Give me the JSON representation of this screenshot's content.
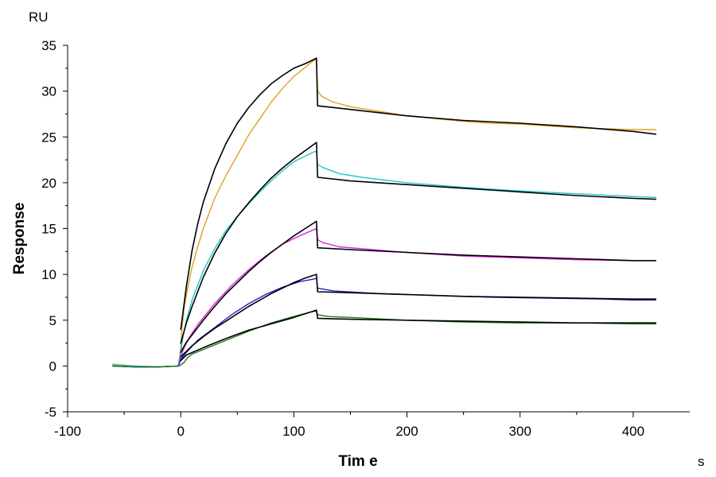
{
  "chart_data": {
    "type": "line",
    "title": "",
    "xlabel": "Tim e",
    "ylabel": "Response",
    "x_unit": "s",
    "y_unit": "RU",
    "xlim": [
      -100,
      450
    ],
    "ylim": [
      -5,
      35
    ],
    "x_ticks": [
      -100,
      0,
      100,
      200,
      300,
      400
    ],
    "y_ticks": [
      -5,
      0,
      5,
      10,
      15,
      20,
      25,
      30,
      35
    ],
    "grid": false,
    "legend": "none",
    "series": [
      {
        "color": "#E0A020",
        "points": [
          [
            -60,
            0.2
          ],
          [
            -40,
            0.0
          ],
          [
            -20,
            -0.1
          ],
          [
            -2,
            0.0
          ],
          [
            0,
            2.0
          ],
          [
            1,
            4.0
          ],
          [
            3,
            6.3
          ],
          [
            6,
            8.4
          ],
          [
            10,
            10.8
          ],
          [
            15,
            13.0
          ],
          [
            20,
            15.0
          ],
          [
            30,
            18.3
          ],
          [
            40,
            20.8
          ],
          [
            50,
            23.0
          ],
          [
            60,
            25.2
          ],
          [
            70,
            27.0
          ],
          [
            80,
            28.8
          ],
          [
            90,
            30.3
          ],
          [
            100,
            31.6
          ],
          [
            110,
            32.6
          ],
          [
            117,
            33.3
          ],
          [
            120,
            33.4
          ],
          [
            121,
            30.0
          ],
          [
            125,
            29.4
          ],
          [
            135,
            28.8
          ],
          [
            150,
            28.3
          ],
          [
            175,
            27.8
          ],
          [
            200,
            27.3
          ],
          [
            225,
            27.0
          ],
          [
            250,
            26.7
          ],
          [
            275,
            26.5
          ],
          [
            300,
            26.4
          ],
          [
            325,
            26.2
          ],
          [
            350,
            26.0
          ],
          [
            375,
            25.9
          ],
          [
            400,
            25.8
          ],
          [
            420,
            25.8
          ]
        ]
      },
      {
        "color": "#000000",
        "points": [
          [
            0,
            4.0
          ],
          [
            5,
            8.7
          ],
          [
            10,
            12.6
          ],
          [
            15,
            15.5
          ],
          [
            20,
            17.9
          ],
          [
            30,
            21.5
          ],
          [
            40,
            24.3
          ],
          [
            50,
            26.5
          ],
          [
            60,
            28.2
          ],
          [
            70,
            29.6
          ],
          [
            80,
            30.8
          ],
          [
            90,
            31.7
          ],
          [
            100,
            32.5
          ],
          [
            110,
            33.0
          ],
          [
            120,
            33.6
          ],
          [
            121,
            28.4
          ],
          [
            150,
            28.0
          ],
          [
            200,
            27.3
          ],
          [
            250,
            26.8
          ],
          [
            300,
            26.5
          ],
          [
            350,
            26.1
          ],
          [
            400,
            25.6
          ],
          [
            420,
            25.3
          ]
        ]
      },
      {
        "color": "#20C8C8",
        "points": [
          [
            -60,
            0.1
          ],
          [
            -40,
            0.0
          ],
          [
            -20,
            -0.1
          ],
          [
            -2,
            0.0
          ],
          [
            0,
            1.5
          ],
          [
            2,
            3.2
          ],
          [
            5,
            5.0
          ],
          [
            10,
            7.2
          ],
          [
            20,
            10.4
          ],
          [
            30,
            12.8
          ],
          [
            40,
            14.8
          ],
          [
            50,
            16.3
          ],
          [
            60,
            17.7
          ],
          [
            70,
            19.0
          ],
          [
            80,
            20.2
          ],
          [
            90,
            21.3
          ],
          [
            100,
            22.3
          ],
          [
            110,
            22.9
          ],
          [
            118,
            23.4
          ],
          [
            120,
            23.4
          ],
          [
            121,
            22.0
          ],
          [
            125,
            21.7
          ],
          [
            140,
            21.0
          ],
          [
            160,
            20.6
          ],
          [
            200,
            20.0
          ],
          [
            250,
            19.5
          ],
          [
            300,
            19.1
          ],
          [
            350,
            18.8
          ],
          [
            400,
            18.5
          ],
          [
            420,
            18.4
          ]
        ]
      },
      {
        "color": "#000000",
        "points": [
          [
            0,
            2.5
          ],
          [
            5,
            4.7
          ],
          [
            10,
            6.5
          ],
          [
            20,
            9.7
          ],
          [
            30,
            12.3
          ],
          [
            40,
            14.5
          ],
          [
            50,
            16.3
          ],
          [
            60,
            17.8
          ],
          [
            70,
            19.2
          ],
          [
            80,
            20.5
          ],
          [
            90,
            21.6
          ],
          [
            100,
            22.6
          ],
          [
            110,
            23.5
          ],
          [
            120,
            24.4
          ],
          [
            121,
            20.6
          ],
          [
            150,
            20.2
          ],
          [
            200,
            19.8
          ],
          [
            250,
            19.4
          ],
          [
            300,
            19.0
          ],
          [
            350,
            18.6
          ],
          [
            400,
            18.3
          ],
          [
            420,
            18.2
          ]
        ]
      },
      {
        "color": "#E020E0",
        "points": [
          [
            -60,
            0.0
          ],
          [
            -40,
            -0.1
          ],
          [
            -20,
            -0.1
          ],
          [
            -2,
            0.0
          ],
          [
            0,
            1.0
          ],
          [
            3,
            2.0
          ],
          [
            8,
            3.2
          ],
          [
            15,
            4.5
          ],
          [
            30,
            6.8
          ],
          [
            45,
            8.8
          ],
          [
            60,
            10.5
          ],
          [
            75,
            12.0
          ],
          [
            90,
            13.3
          ],
          [
            105,
            14.2
          ],
          [
            118,
            14.9
          ],
          [
            120,
            15.0
          ],
          [
            121,
            13.8
          ],
          [
            125,
            13.5
          ],
          [
            140,
            13.0
          ],
          [
            200,
            12.4
          ],
          [
            250,
            12.0
          ],
          [
            300,
            11.8
          ],
          [
            350,
            11.6
          ],
          [
            400,
            11.5
          ],
          [
            420,
            11.5
          ]
        ]
      },
      {
        "color": "#000000",
        "points": [
          [
            0,
            1.5
          ],
          [
            5,
            2.6
          ],
          [
            10,
            3.4
          ],
          [
            20,
            5.0
          ],
          [
            30,
            6.5
          ],
          [
            40,
            7.9
          ],
          [
            50,
            9.1
          ],
          [
            60,
            10.3
          ],
          [
            70,
            11.4
          ],
          [
            80,
            12.4
          ],
          [
            90,
            13.3
          ],
          [
            100,
            14.2
          ],
          [
            110,
            15.0
          ],
          [
            120,
            15.8
          ],
          [
            121,
            12.9
          ],
          [
            150,
            12.7
          ],
          [
            200,
            12.4
          ],
          [
            250,
            12.1
          ],
          [
            300,
            11.9
          ],
          [
            350,
            11.7
          ],
          [
            400,
            11.5
          ],
          [
            420,
            11.5
          ]
        ]
      },
      {
        "color": "#2020D0",
        "points": [
          [
            -60,
            0.0
          ],
          [
            -40,
            -0.1
          ],
          [
            -20,
            -0.1
          ],
          [
            -2,
            0.0
          ],
          [
            0,
            0.7
          ],
          [
            5,
            1.5
          ],
          [
            15,
            2.8
          ],
          [
            30,
            4.2
          ],
          [
            45,
            5.6
          ],
          [
            60,
            6.8
          ],
          [
            75,
            7.8
          ],
          [
            90,
            8.6
          ],
          [
            105,
            9.2
          ],
          [
            118,
            9.5
          ],
          [
            120,
            9.6
          ],
          [
            121,
            8.5
          ],
          [
            135,
            8.2
          ],
          [
            175,
            7.9
          ],
          [
            225,
            7.7
          ],
          [
            275,
            7.5
          ],
          [
            325,
            7.4
          ],
          [
            375,
            7.3
          ],
          [
            400,
            7.2
          ],
          [
            420,
            7.2
          ]
        ]
      },
      {
        "color": "#000000",
        "points": [
          [
            0,
            1.0
          ],
          [
            5,
            1.6
          ],
          [
            10,
            2.2
          ],
          [
            20,
            3.2
          ],
          [
            30,
            4.1
          ],
          [
            40,
            4.9
          ],
          [
            50,
            5.7
          ],
          [
            60,
            6.5
          ],
          [
            70,
            7.2
          ],
          [
            80,
            7.9
          ],
          [
            90,
            8.5
          ],
          [
            100,
            9.1
          ],
          [
            110,
            9.6
          ],
          [
            120,
            10.0
          ],
          [
            121,
            8.1
          ],
          [
            150,
            8.0
          ],
          [
            200,
            7.8
          ],
          [
            250,
            7.6
          ],
          [
            300,
            7.5
          ],
          [
            350,
            7.4
          ],
          [
            400,
            7.3
          ],
          [
            420,
            7.3
          ]
        ]
      },
      {
        "color": "#1A7A1A",
        "points": [
          [
            -60,
            0.0
          ],
          [
            -40,
            -0.1
          ],
          [
            -20,
            -0.1
          ],
          [
            -2,
            0.0
          ],
          [
            0,
            0.1
          ],
          [
            3,
            0.4
          ],
          [
            6,
            0.9
          ],
          [
            10,
            1.3
          ],
          [
            20,
            1.8
          ],
          [
            40,
            2.8
          ],
          [
            60,
            3.8
          ],
          [
            80,
            4.7
          ],
          [
            100,
            5.4
          ],
          [
            115,
            5.9
          ],
          [
            120,
            6.0
          ],
          [
            121,
            5.6
          ],
          [
            130,
            5.4
          ],
          [
            150,
            5.3
          ],
          [
            200,
            5.0
          ],
          [
            250,
            4.8
          ],
          [
            300,
            4.7
          ],
          [
            350,
            4.7
          ],
          [
            400,
            4.6
          ],
          [
            420,
            4.6
          ]
        ]
      },
      {
        "color": "#000000",
        "points": [
          [
            0,
            0.6
          ],
          [
            5,
            1.2
          ],
          [
            20,
            2.0
          ],
          [
            40,
            3.0
          ],
          [
            60,
            3.9
          ],
          [
            80,
            4.6
          ],
          [
            100,
            5.3
          ],
          [
            120,
            6.1
          ],
          [
            121,
            5.2
          ],
          [
            150,
            5.1
          ],
          [
            200,
            5.0
          ],
          [
            250,
            4.9
          ],
          [
            300,
            4.8
          ],
          [
            350,
            4.7
          ],
          [
            400,
            4.7
          ],
          [
            420,
            4.7
          ]
        ]
      }
    ]
  }
}
